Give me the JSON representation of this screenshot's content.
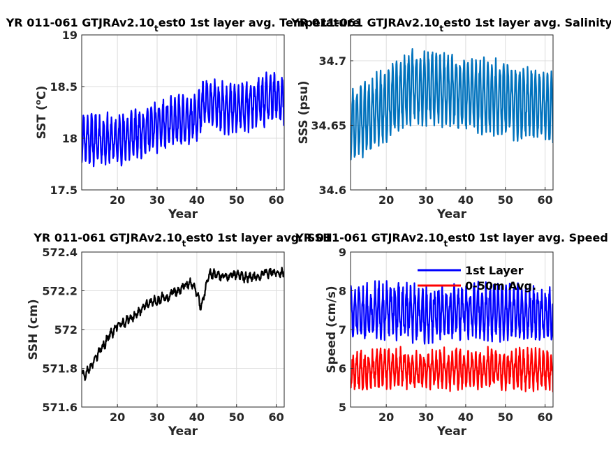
{
  "colors": {
    "sst": "#0000ff",
    "sss": "#0072bd",
    "ssh": "#000000",
    "speed_1st": "#0000ff",
    "speed_avg": "#ff0000"
  },
  "chart_data": [
    {
      "type": "line",
      "title_parts": [
        "YR 011-061 GTJRAv2.10",
        "t",
        "est0 1st layer avg. Temperature"
      ],
      "xlabel": "Year",
      "ylabel": "SST (",
      "ylabel_sup": "o",
      "ylabel_end": "C)",
      "xlim": [
        11,
        62
      ],
      "ylim": [
        17.5,
        19
      ],
      "xticks": [
        20,
        30,
        40,
        50,
        60
      ],
      "xticklabels": [
        "20",
        "30",
        "40",
        "50",
        "60"
      ],
      "yticks": [
        17.5,
        18,
        18.5,
        19
      ],
      "yticklabels": [
        "17.5",
        "18",
        "18.5",
        "19"
      ],
      "grid": true,
      "series": [
        {
          "color_key": "sst",
          "base": 17.98,
          "trend": 0.0064,
          "amp": 0.2,
          "noise": 0.07,
          "seed": 11,
          "x": [
            11,
            20,
            30,
            40,
            42,
            50,
            60,
            62
          ],
          "y": [
            18.0,
            17.98,
            18.12,
            18.2,
            18.35,
            18.28,
            18.4,
            18.35
          ]
        }
      ]
    },
    {
      "type": "line",
      "title_parts": [
        "YR 011-061 GTJRAv2.10",
        "t",
        "est0 1st layer avg. Salinity"
      ],
      "xlabel": "Year",
      "ylabel": "SSS (psu)",
      "xlim": [
        11,
        62
      ],
      "ylim": [
        34.6,
        34.72
      ],
      "xticks": [
        20,
        30,
        40,
        50,
        60
      ],
      "xticklabels": [
        "20",
        "30",
        "40",
        "50",
        "60"
      ],
      "yticks": [
        34.6,
        34.65,
        34.7
      ],
      "yticklabels": [
        "34.6",
        "34.65",
        "34.7"
      ],
      "grid": true,
      "series": [
        {
          "color_key": "sss",
          "base": 34.665,
          "trend": 0,
          "amp": 0.025,
          "noise": 0.006,
          "seed": 23,
          "x": [
            11,
            20,
            26,
            30,
            40,
            50,
            60,
            62
          ],
          "y": [
            34.65,
            34.665,
            34.68,
            34.68,
            34.675,
            34.67,
            34.665,
            34.66
          ]
        }
      ]
    },
    {
      "type": "line",
      "title_parts": [
        "YR 011-061 GTJRAv2.10",
        "t",
        "est0 1st layer avg. SSH"
      ],
      "xlabel": "Year",
      "ylabel": "SSH (cm)",
      "xlim": [
        11,
        62
      ],
      "ylim": [
        571.6,
        572.4
      ],
      "xticks": [
        20,
        30,
        40,
        50,
        60
      ],
      "xticklabels": [
        "20",
        "30",
        "40",
        "50",
        "60"
      ],
      "yticks": [
        571.6,
        571.8,
        572,
        572.2,
        572.4
      ],
      "yticklabels": [
        "571.6",
        "571.8",
        "572",
        "572.2",
        "572.4"
      ],
      "grid": true,
      "series": [
        {
          "color_key": "ssh",
          "base": 0,
          "trend": 0,
          "amp": 0.015,
          "noise": 0.012,
          "seed": 37,
          "x": [
            11,
            12,
            14,
            16,
            18,
            20,
            25,
            28,
            35,
            39,
            41,
            42,
            43,
            45,
            50,
            55,
            60,
            62
          ],
          "y": [
            571.79,
            571.76,
            571.83,
            571.9,
            571.97,
            572.02,
            572.08,
            572.13,
            572.2,
            572.23,
            572.12,
            572.2,
            572.29,
            572.28,
            572.27,
            572.28,
            572.3,
            572.3
          ]
        }
      ]
    },
    {
      "type": "line",
      "title_parts": [
        "YR 011-061 GTJRAv2.10",
        "t",
        "est0 1st layer avg. Speed"
      ],
      "xlabel": "Year",
      "ylabel": "Speed (cm/s)",
      "xlim": [
        11,
        62
      ],
      "ylim": [
        5,
        9
      ],
      "xticks": [
        20,
        30,
        40,
        50,
        60
      ],
      "xticklabels": [
        "20",
        "30",
        "40",
        "50",
        "60"
      ],
      "yticks": [
        5,
        6,
        7,
        8,
        9
      ],
      "yticklabels": [
        "5",
        "6",
        "7",
        "8",
        "9"
      ],
      "grid": true,
      "legend": "top-right",
      "series": [
        {
          "name": "1st Layer",
          "color_key": "speed_1st",
          "base": 7.45,
          "trend": 0,
          "amp": 0.55,
          "noise": 0.25,
          "seed": 51,
          "x": [
            11,
            20,
            30,
            40,
            50,
            60,
            62
          ],
          "y": [
            7.4,
            7.5,
            7.4,
            7.5,
            7.45,
            7.4,
            7.35
          ]
        },
        {
          "name": "0-50m Avg.",
          "color_key": "speed_avg",
          "base": 5.95,
          "trend": 0,
          "amp": 0.4,
          "noise": 0.18,
          "seed": 67,
          "x": [
            11,
            20,
            30,
            40,
            50,
            60,
            62
          ],
          "y": [
            5.95,
            6.0,
            5.95,
            6.0,
            6.0,
            5.95,
            5.9
          ]
        }
      ]
    }
  ]
}
